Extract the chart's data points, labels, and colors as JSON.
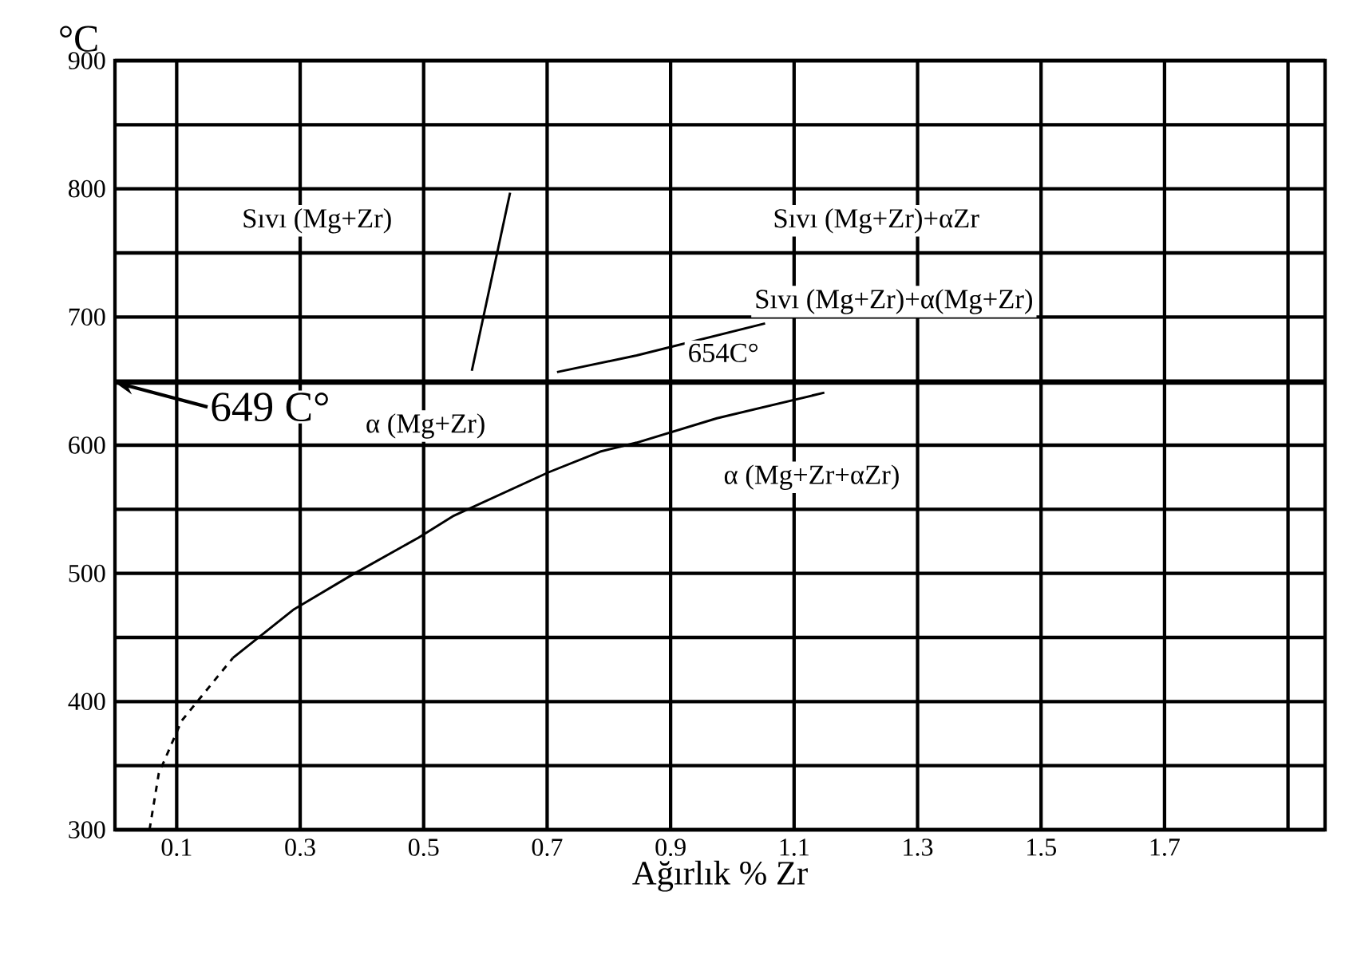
{
  "chart_data": {
    "type": "line",
    "xlabel": "Ağırlık % Zr",
    "ylabel": "°C",
    "xlim": [
      0,
      1.96
    ],
    "ylim": [
      300,
      900
    ],
    "xticks": [
      0.1,
      0.3,
      0.5,
      0.7,
      0.9,
      1.1,
      1.3,
      1.5,
      1.7,
      {
        "value": 1.9,
        "label": null
      }
    ],
    "yticks": [
      300,
      {
        "value": 350,
        "label": null
      },
      400,
      {
        "value": 450,
        "label": null
      },
      500,
      {
        "value": 550,
        "label": null
      },
      600,
      {
        "value": 650,
        "label": null
      },
      700,
      {
        "value": 750,
        "label": null
      },
      800,
      {
        "value": 850,
        "label": null
      },
      900
    ],
    "grid": true,
    "series": [
      {
        "color": "#000000",
        "line_style": "dashed",
        "x": [
          0.056,
          0.071,
          0.108,
          0.157,
          0.191
        ],
        "values": [
          300,
          344,
          385,
          414,
          434
        ]
      },
      {
        "color": "#000000",
        "line_style": "solid",
        "x": [
          0.191,
          0.29,
          0.381,
          0.492,
          0.549,
          0.703,
          0.786,
          0.845,
          0.975,
          1.149
        ],
        "values": [
          434,
          472,
          498,
          528,
          545,
          579,
          595,
          602,
          621,
          641
        ]
      },
      {
        "color": "#000000",
        "line_style": "solid",
        "x": [
          0.716,
          0.845,
          1.053
        ],
        "values": [
          657,
          670,
          695
        ]
      },
      {
        "color": "#000000",
        "line_style": "solid",
        "x": [
          0.578,
          0.64
        ],
        "values": [
          658,
          797
        ]
      }
    ],
    "ref_lines": [
      {
        "axis": "y",
        "value": 649,
        "label": "649 C°",
        "color": "#000000"
      }
    ],
    "annotations": [
      "Sıvı  (Mg+Zr)",
      "Sıvı  (Mg+Zr)+αZr",
      "Sıvı  (Mg+Zr)+α(Mg+Zr)",
      "654C°",
      "α (Mg+Zr+αZr)",
      "α (Mg+Zr)"
    ]
  }
}
